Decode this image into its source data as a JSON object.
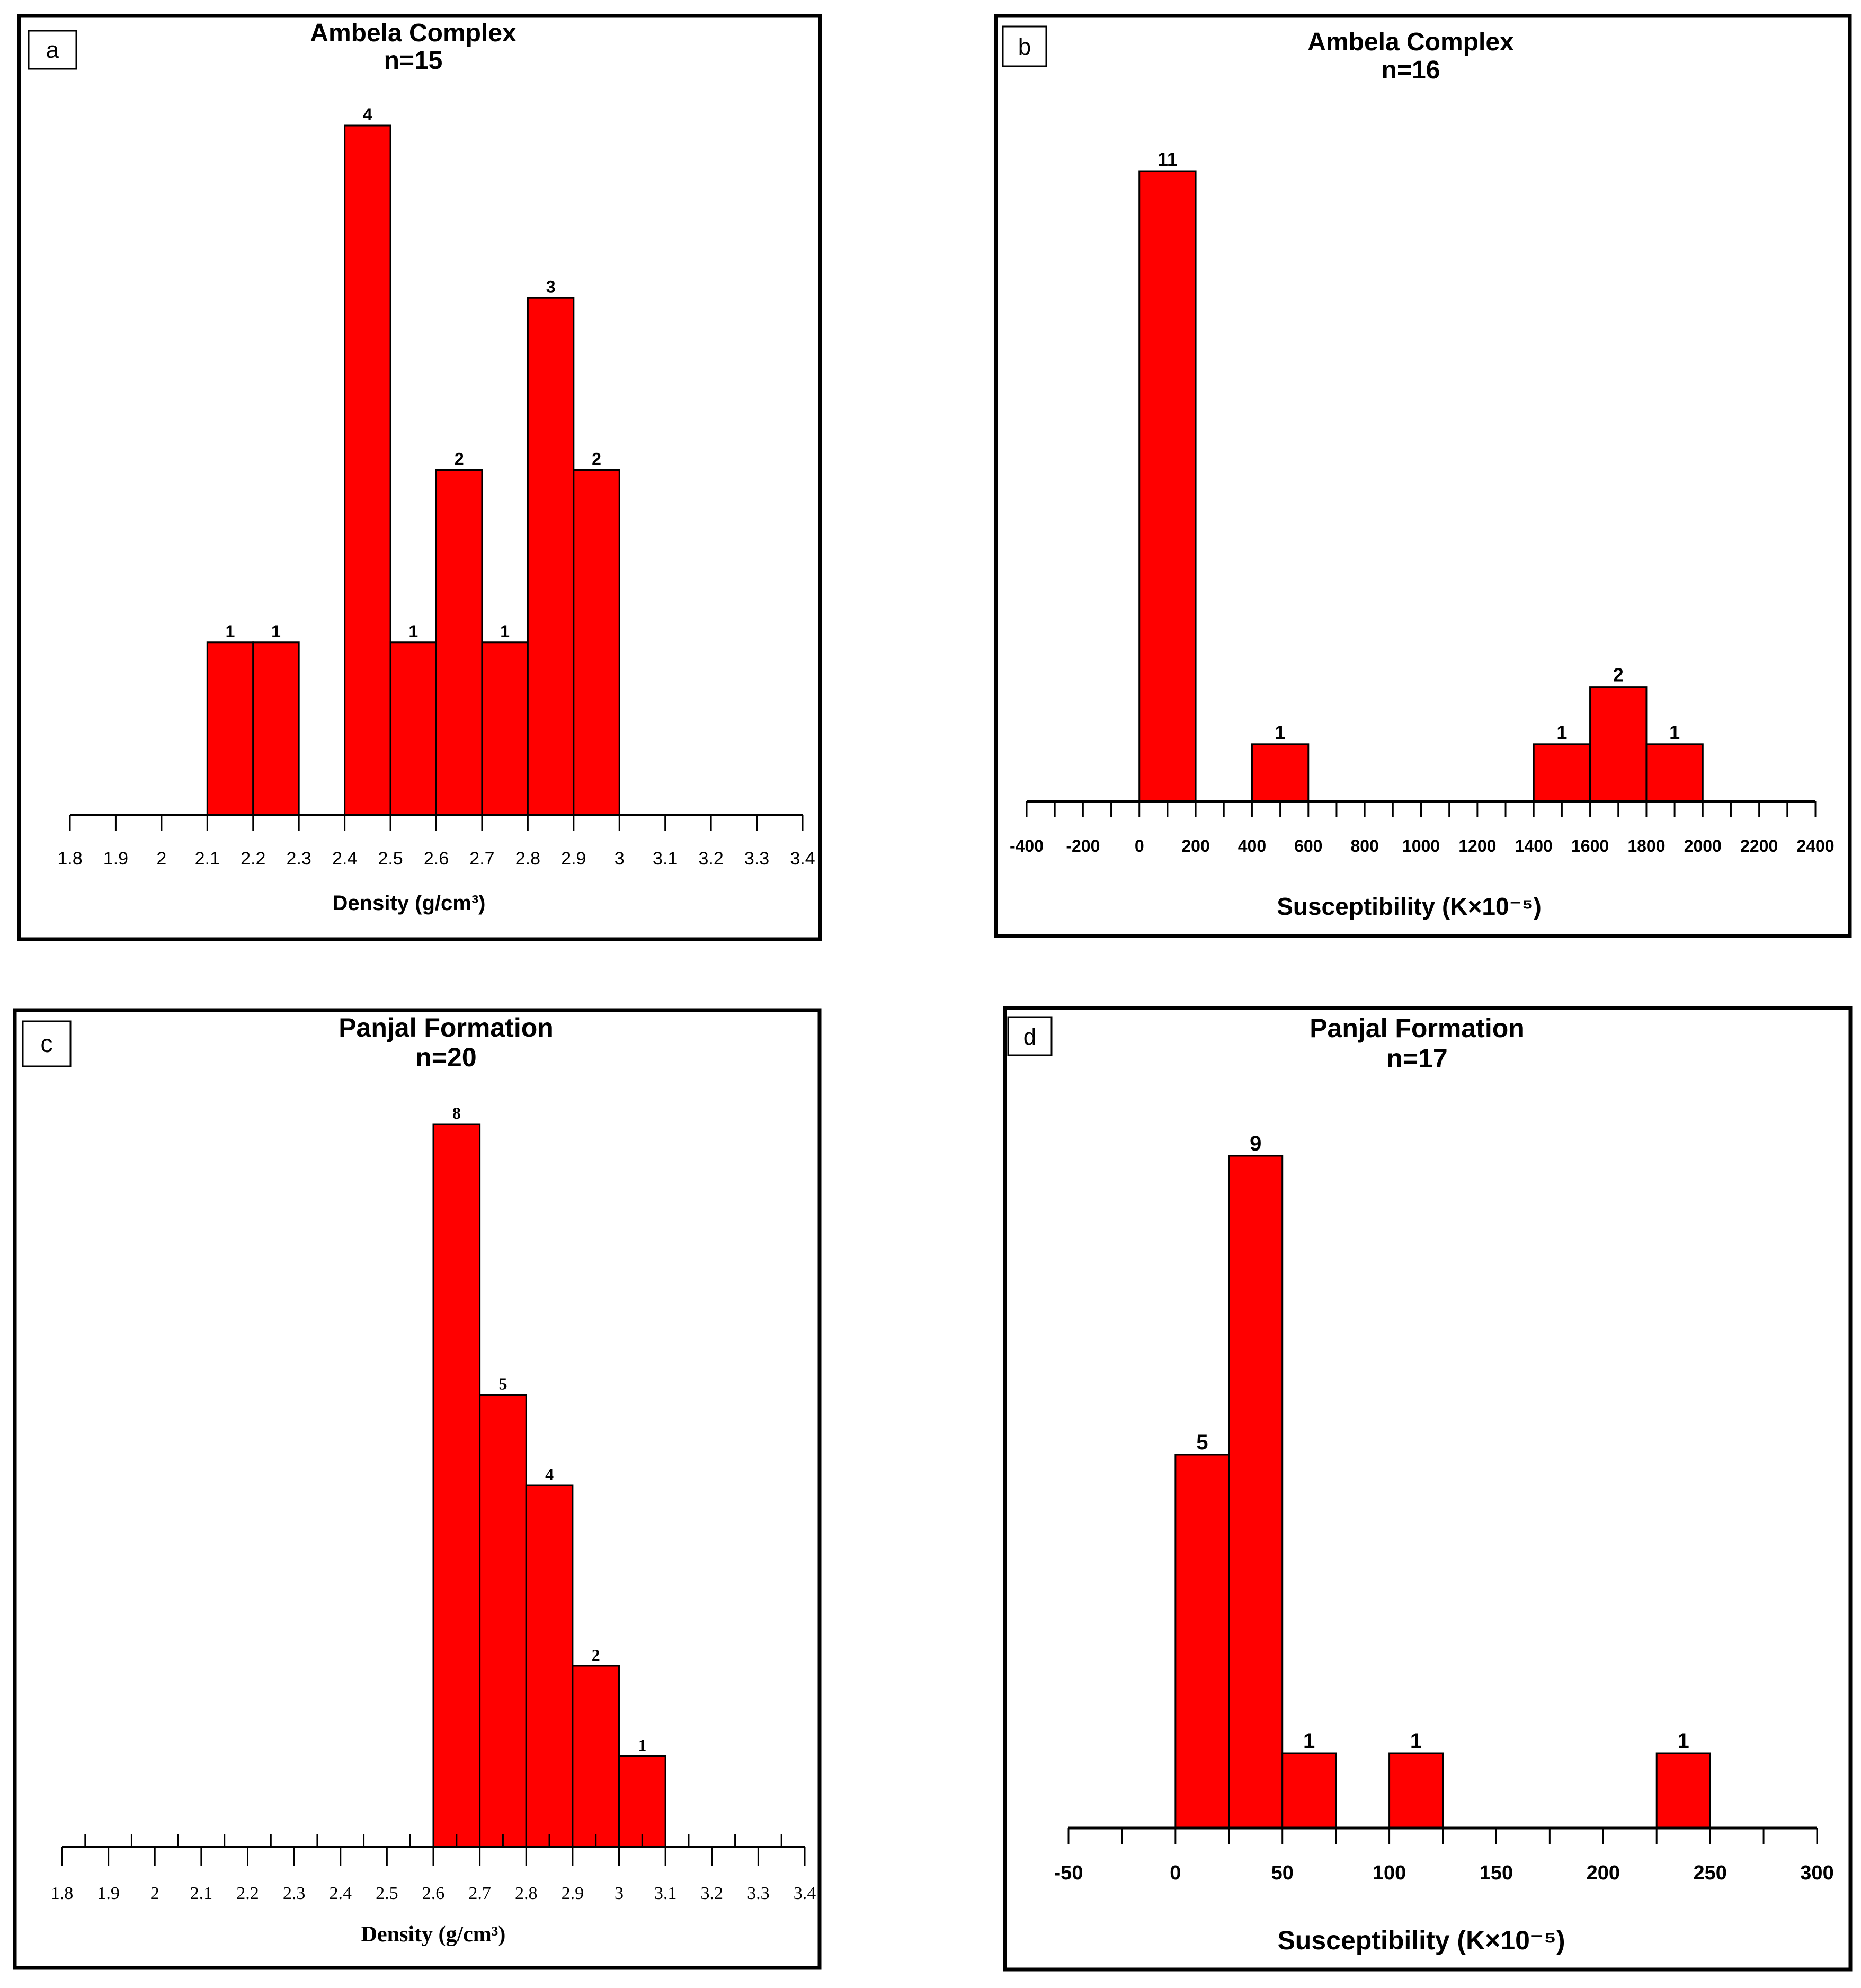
{
  "colors": {
    "bar": "#ff0000",
    "stroke": "#000000",
    "background": "#ffffff"
  },
  "chart_data": [
    {
      "id": "a",
      "type": "bar",
      "panel_label": "a",
      "title": "Ambela Complex",
      "subtitle": "n=15",
      "xlabel": "Density (g/cm³)",
      "ylabel": "",
      "xlim": [
        1.8,
        3.4
      ],
      "ylim": [
        0,
        4
      ],
      "grid": false,
      "tick_labels": [
        "1.8",
        "1.9",
        "2",
        "2.1",
        "2.2",
        "2.3",
        "2.4",
        "2.5",
        "2.6",
        "2.7",
        "2.8",
        "2.9",
        "3",
        "3.1",
        "3.2",
        "3.3",
        "3.4"
      ],
      "bins": [
        {
          "from": 2.1,
          "to": 2.2,
          "count": 1,
          "label": "1"
        },
        {
          "from": 2.2,
          "to": 2.3,
          "count": 1,
          "label": "1"
        },
        {
          "from": 2.4,
          "to": 2.5,
          "count": 4,
          "label": "4"
        },
        {
          "from": 2.5,
          "to": 2.6,
          "count": 1,
          "label": "1"
        },
        {
          "from": 2.6,
          "to": 2.7,
          "count": 2,
          "label": "2"
        },
        {
          "from": 2.7,
          "to": 2.8,
          "count": 1,
          "label": "1"
        },
        {
          "from": 2.8,
          "to": 2.9,
          "count": 3,
          "label": "3"
        },
        {
          "from": 2.9,
          "to": 3.0,
          "count": 2,
          "label": "2"
        }
      ]
    },
    {
      "id": "b",
      "type": "bar",
      "panel_label": "b",
      "title": "Ambela Complex",
      "subtitle": "n=16",
      "xlabel": "Susceptibility (K×10⁻⁵)",
      "ylabel": "",
      "xlim": [
        -400,
        2400
      ],
      "ylim": [
        0,
        11
      ],
      "grid": false,
      "tick_labels": [
        "-400",
        "-200",
        "0",
        "200",
        "400",
        "600",
        "800",
        "1000",
        "1200",
        "1400",
        "1600",
        "1800",
        "2000",
        "2200",
        "2400"
      ],
      "bins": [
        {
          "from": 0,
          "to": 200,
          "count": 11,
          "label": "11"
        },
        {
          "from": 400,
          "to": 600,
          "count": 1,
          "label": "1"
        },
        {
          "from": 1400,
          "to": 1600,
          "count": 1,
          "label": "1"
        },
        {
          "from": 1600,
          "to": 1800,
          "count": 2,
          "label": "2"
        },
        {
          "from": 1800,
          "to": 2000,
          "count": 1,
          "label": "1"
        }
      ]
    },
    {
      "id": "c",
      "type": "bar",
      "panel_label": "c",
      "title": "Panjal Formation",
      "subtitle": "n=20",
      "xlabel": "Density (g/cm³)",
      "ylabel": "",
      "xlim": [
        1.8,
        3.4
      ],
      "ylim": [
        0,
        8
      ],
      "grid": false,
      "tick_labels": [
        "1.8",
        "1.9",
        "2",
        "2.1",
        "2.2",
        "2.3",
        "2.4",
        "2.5",
        "2.6",
        "2.7",
        "2.8",
        "2.9",
        "3",
        "3.1",
        "3.2",
        "3.3",
        "3.4"
      ],
      "bins": [
        {
          "from": 2.6,
          "to": 2.7,
          "count": 8,
          "label": "8"
        },
        {
          "from": 2.7,
          "to": 2.8,
          "count": 5,
          "label": "5"
        },
        {
          "from": 2.8,
          "to": 2.9,
          "count": 4,
          "label": "4"
        },
        {
          "from": 2.9,
          "to": 3.0,
          "count": 2,
          "label": "2"
        },
        {
          "from": 3.0,
          "to": 3.1,
          "count": 1,
          "label": "1"
        }
      ]
    },
    {
      "id": "d",
      "type": "bar",
      "panel_label": "d",
      "title": "Panjal Formation",
      "subtitle": "n=17",
      "xlabel": "Susceptibility (K×10⁻⁵)",
      "ylabel": "",
      "xlim": [
        -50,
        300
      ],
      "ylim": [
        0,
        9
      ],
      "grid": false,
      "tick_labels": [
        "-50",
        "0",
        "50",
        "100",
        "150",
        "200",
        "250",
        "300"
      ],
      "bins": [
        {
          "from": 0,
          "to": 25,
          "count": 5,
          "label": "5"
        },
        {
          "from": 25,
          "to": 50,
          "count": 9,
          "label": "9"
        },
        {
          "from": 50,
          "to": 75,
          "count": 1,
          "label": "1"
        },
        {
          "from": 100,
          "to": 125,
          "count": 1,
          "label": "1"
        },
        {
          "from": 225,
          "to": 250,
          "count": 1,
          "label": "1"
        }
      ]
    }
  ]
}
